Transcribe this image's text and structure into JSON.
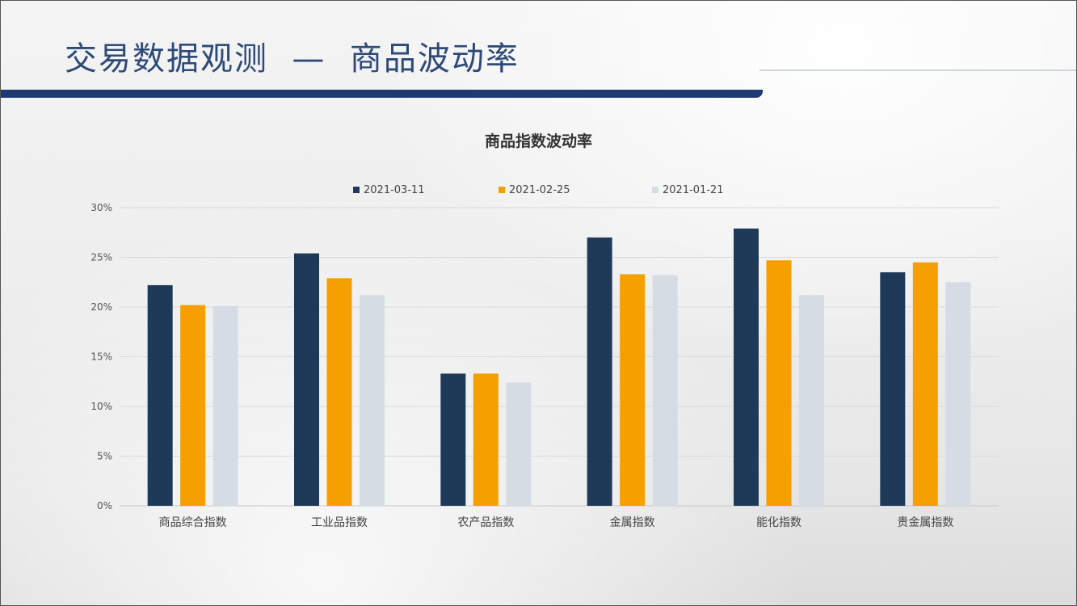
{
  "slide": {
    "title": "交易数据观测  —  商品波动率"
  },
  "chart_data": {
    "type": "bar",
    "title": "商品指数波动率",
    "xlabel": "",
    "ylabel": "",
    "categories": [
      "商品综合指数",
      "工业品指数",
      "农产品指数",
      "金属指数",
      "能化指数",
      "贵金属指数"
    ],
    "series": [
      {
        "name": "2021-03-11",
        "color": "#1f3a58",
        "values": [
          22.2,
          25.4,
          13.3,
          27.0,
          27.9,
          23.5
        ]
      },
      {
        "name": "2021-02-25",
        "color": "#f5a000",
        "values": [
          20.2,
          22.9,
          13.3,
          23.3,
          24.7,
          24.5
        ]
      },
      {
        "name": "2021-01-21",
        "color": "#d6dce4",
        "values": [
          20.1,
          21.2,
          12.4,
          23.2,
          21.2,
          22.5
        ]
      }
    ],
    "ylim": [
      0,
      30
    ],
    "yticks": [
      "0%",
      "5%",
      "10%",
      "15%",
      "20%",
      "25%",
      "30%"
    ],
    "grid": true,
    "legend_position": "top"
  }
}
